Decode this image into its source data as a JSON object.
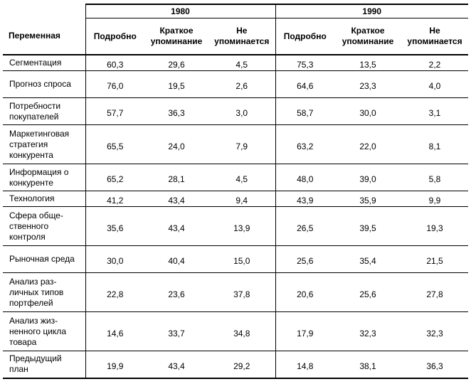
{
  "table": {
    "col_variable": "Переменная",
    "years": [
      "1980",
      "1990"
    ],
    "sub_headers": [
      "Подробно",
      "Краткое упоминание",
      "Не упоминается",
      "Подробно",
      "Краткое упоминание",
      "Не упоминается"
    ],
    "rows": [
      {
        "label": "Сегментация",
        "values": [
          "60,3",
          "29,6",
          "4,5",
          "75,3",
          "13,5",
          "2,2"
        ]
      },
      {
        "label": "Прогноз спроса",
        "values": [
          "76,0",
          "19,5",
          "2,6",
          "64,6",
          "23,3",
          "4,0"
        ]
      },
      {
        "label": "Потребности покупателей",
        "values": [
          "57,7",
          "36,3",
          "3,0",
          "58,7",
          "30,0",
          "3,1"
        ]
      },
      {
        "label": "Маркетинговая стратегия конкурента",
        "values": [
          "65,5",
          "24,0",
          "7,9",
          "63,2",
          "22,0",
          "8,1"
        ]
      },
      {
        "label": "Информация о конкуренте",
        "values": [
          "65,2",
          "28,1",
          "4,5",
          "48,0",
          "39,0",
          "5,8"
        ]
      },
      {
        "label": "Технология",
        "values": [
          "41,2",
          "43,4",
          "9,4",
          "43,9",
          "35,9",
          "9,9"
        ]
      },
      {
        "label": "Сфера обще-ственного контроля",
        "values": [
          "35,6",
          "43,4",
          "13,9",
          "26,5",
          "39,5",
          "19,3"
        ]
      },
      {
        "label": "Рыночная среда",
        "values": [
          "30,0",
          "40,4",
          "15,0",
          "25,6",
          "35,4",
          "21,5"
        ]
      },
      {
        "label": "Анализ раз-личных типов портфелей",
        "values": [
          "22,8",
          "23,6",
          "37,8",
          "20,6",
          "25,6",
          "27,8"
        ]
      },
      {
        "label": "Анализ жиз-ненного цикла товара",
        "values": [
          "14,6",
          "33,7",
          "34,8",
          "17,9",
          "32,3",
          "32,3"
        ]
      },
      {
        "label": "Предыдущий план",
        "values": [
          "19,9",
          "43,4",
          "29,2",
          "14,8",
          "38,1",
          "36,3"
        ]
      }
    ]
  }
}
